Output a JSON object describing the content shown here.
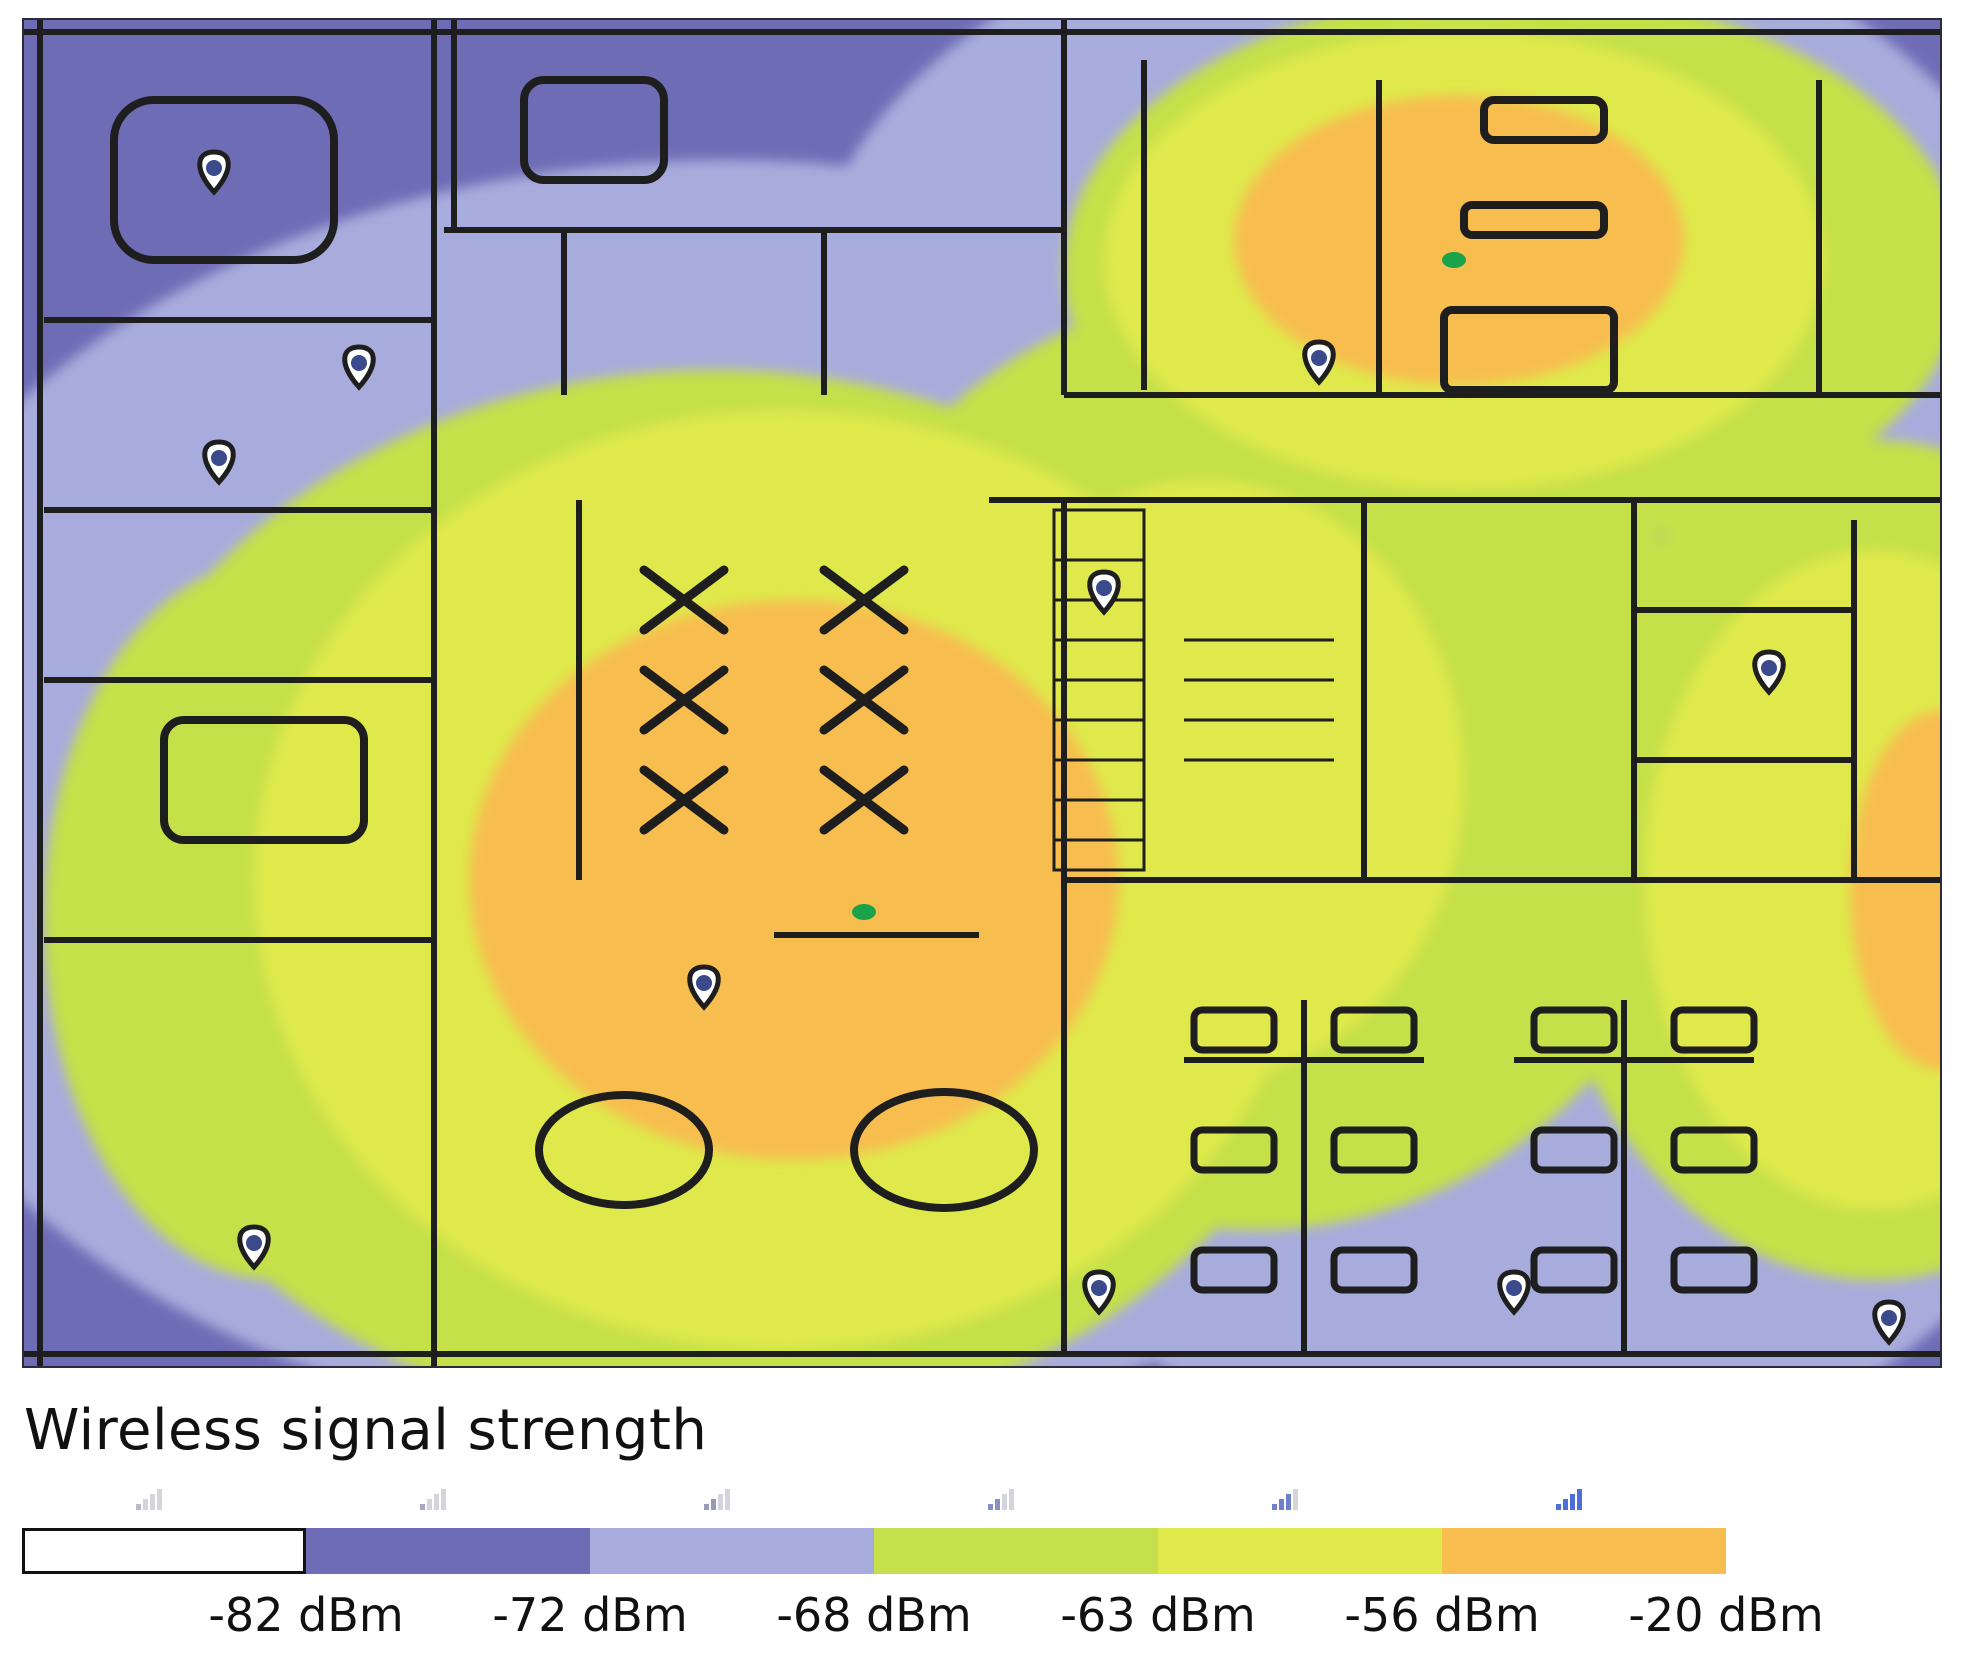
{
  "legend": {
    "title": "Wireless signal strength",
    "bins": [
      {
        "color": "#ffffff",
        "label": ""
      },
      {
        "color": "#6f6cb6",
        "label": "-82 dBm"
      },
      {
        "color": "#a8acdc",
        "label": "-72 dBm"
      },
      {
        "color": "#c5e04a",
        "label": "-68 dBm"
      },
      {
        "color": "#dfe94b",
        "label": "-63 dBm"
      },
      {
        "color": "#f7be4f",
        "label": "-56 dBm"
      },
      {
        "color": "",
        "label": "-20 dBm"
      }
    ]
  },
  "map": {
    "colors": {
      "weak": "#6f6cb6",
      "fair": "#a8acdc",
      "good": "#c5e04a",
      "strong": "#dfe94b",
      "excellent": "#f7be4f",
      "walls": "#1e1e1e",
      "pin": "#3a4a8a"
    },
    "access_point_count": 11,
    "sensor_count": 2
  }
}
